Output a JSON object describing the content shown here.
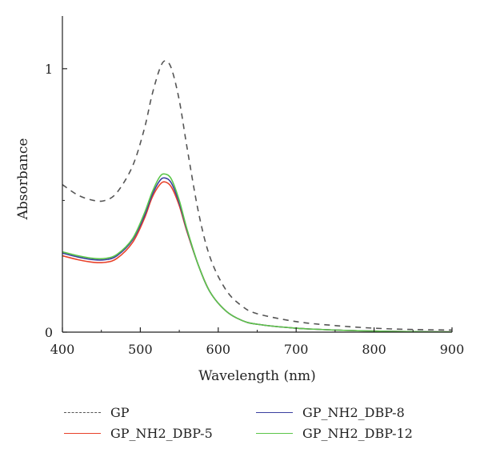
{
  "chart_data": {
    "type": "line",
    "title": "",
    "xlabel": "Wavelength (nm)",
    "ylabel": "Absorbance",
    "xlim": [
      400,
      900
    ],
    "ylim": [
      0,
      1.2
    ],
    "xticks": [
      400,
      500,
      600,
      700,
      800,
      900
    ],
    "yticks": [
      0,
      1
    ],
    "xtick_labels": [
      "400",
      "500",
      "600",
      "700",
      "800",
      "900"
    ],
    "ytick_labels": [
      "0",
      "1"
    ],
    "grid": false,
    "legend_position": "bottom",
    "series": [
      {
        "name": "GP",
        "color": "#555555",
        "dash": "dashed",
        "x": [
          400,
          420,
          440,
          455,
          470,
          490,
          505,
          515,
          525,
          532,
          540,
          550,
          560,
          575,
          590,
          610,
          630,
          650,
          700,
          750,
          800,
          850,
          900
        ],
        "y": [
          0.56,
          0.52,
          0.5,
          0.5,
          0.53,
          0.63,
          0.77,
          0.9,
          1.0,
          1.03,
          1.0,
          0.88,
          0.7,
          0.45,
          0.28,
          0.16,
          0.1,
          0.07,
          0.04,
          0.025,
          0.015,
          0.01,
          0.008
        ]
      },
      {
        "name": "GP_NH2_DBP-5",
        "color": "#e8412a",
        "dash": "solid",
        "x": [
          400,
          420,
          440,
          455,
          470,
          490,
          505,
          515,
          525,
          532,
          540,
          550,
          560,
          575,
          590,
          610,
          630,
          650,
          700,
          750,
          800,
          850,
          900
        ],
        "y": [
          0.29,
          0.275,
          0.265,
          0.265,
          0.28,
          0.34,
          0.43,
          0.51,
          0.56,
          0.57,
          0.55,
          0.48,
          0.38,
          0.25,
          0.15,
          0.08,
          0.045,
          0.03,
          0.015,
          0.008,
          0.004,
          0.002,
          0.001
        ]
      },
      {
        "name": "GP_NH2_DBP-8",
        "color": "#3a3fa0",
        "dash": "solid",
        "x": [
          400,
          420,
          440,
          455,
          470,
          490,
          505,
          515,
          525,
          532,
          540,
          550,
          560,
          575,
          590,
          610,
          630,
          650,
          700,
          750,
          800,
          850,
          900
        ],
        "y": [
          0.3,
          0.285,
          0.275,
          0.275,
          0.29,
          0.35,
          0.44,
          0.52,
          0.575,
          0.585,
          0.565,
          0.49,
          0.385,
          0.25,
          0.15,
          0.08,
          0.045,
          0.03,
          0.015,
          0.008,
          0.004,
          0.002,
          0.001
        ]
      },
      {
        "name": "GP_NH2_DBP-12",
        "color": "#5cc64a",
        "dash": "solid",
        "x": [
          400,
          420,
          440,
          455,
          470,
          490,
          505,
          515,
          525,
          532,
          540,
          550,
          560,
          575,
          590,
          610,
          630,
          650,
          700,
          750,
          800,
          850,
          900
        ],
        "y": [
          0.305,
          0.29,
          0.28,
          0.28,
          0.295,
          0.355,
          0.45,
          0.53,
          0.59,
          0.6,
          0.58,
          0.5,
          0.39,
          0.25,
          0.15,
          0.08,
          0.045,
          0.03,
          0.015,
          0.008,
          0.004,
          0.002,
          0.001
        ]
      }
    ]
  }
}
